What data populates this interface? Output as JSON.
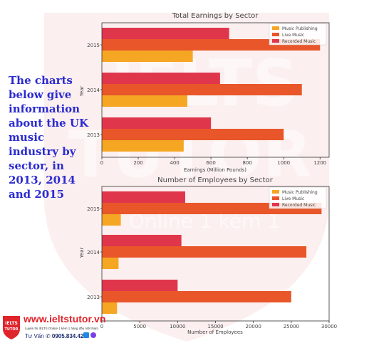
{
  "intro_text": "The charts below give information about the UK music industry by sector, in 2013, 2014 and 2015",
  "watermark": {
    "line1": "IELTS",
    "line2": "TUTOR",
    "line3": "Online 1 kèm 1"
  },
  "footer": {
    "logo_text": "IELTS TUTOR",
    "site": "www.ieltstutor.vn",
    "tagline": "Luyện thi IELTS Online 1 kèm 1 hàng đầu Việt Nam",
    "contact_label": "Tư Vấn",
    "phone": "0905.834.420"
  },
  "colors": {
    "music_publishing": "#f5a623",
    "live_music": "#e8562a",
    "recorded_music": "#e0364c",
    "watermark": "#dc4a4a"
  },
  "chart_data": [
    {
      "type": "bar",
      "orientation": "horizontal",
      "title": "Total Earnings by Sector",
      "xlabel": "Earnings (Million Pounds)",
      "ylabel": "Year",
      "categories": [
        "2013",
        "2014",
        "2015"
      ],
      "xlim": [
        0,
        1250
      ],
      "xticks": [
        0,
        200,
        400,
        600,
        800,
        1000,
        1200
      ],
      "legend_position": "top-right",
      "series": [
        {
          "name": "Music Publishing",
          "values": [
            450,
            470,
            500
          ]
        },
        {
          "name": "Live Music",
          "values": [
            1000,
            1100,
            1200
          ]
        },
        {
          "name": "Recorded Music",
          "values": [
            600,
            650,
            700
          ]
        }
      ]
    },
    {
      "type": "bar",
      "orientation": "horizontal",
      "title": "Number of Employees by Sector",
      "xlabel": "Number of Employees",
      "ylabel": "Year",
      "categories": [
        "2013",
        "2014",
        "2015"
      ],
      "xlim": [
        0,
        30000
      ],
      "xticks": [
        0,
        5000,
        10000,
        15000,
        20000,
        25000,
        30000
      ],
      "legend_position": "top-right",
      "series": [
        {
          "name": "Music Publishing",
          "values": [
            2000,
            2200,
            2500
          ]
        },
        {
          "name": "Live Music",
          "values": [
            25000,
            27000,
            29000
          ]
        },
        {
          "name": "Recorded Music",
          "values": [
            10000,
            10500,
            11000
          ]
        }
      ]
    }
  ]
}
